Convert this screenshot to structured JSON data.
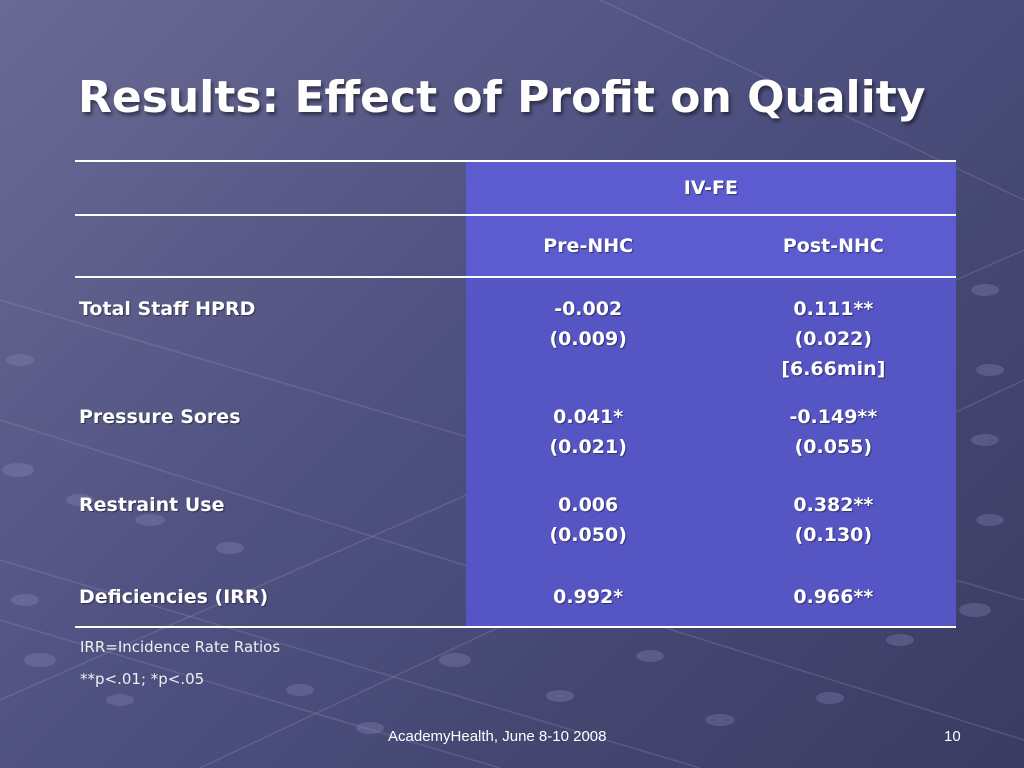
{
  "slide": {
    "title": "Results: Effect of Profit on Quality",
    "table": {
      "group_header": "IV-FE",
      "columns": [
        "Pre-NHC",
        "Post-NHC"
      ],
      "rows": [
        {
          "label": "Total Staff HPRD",
          "pre": [
            "-0.002",
            "(0.009)"
          ],
          "post": [
            "0.111**",
            "(0.022)",
            "[6.66min]"
          ]
        },
        {
          "label": "Pressure Sores",
          "pre": [
            "0.041*",
            "(0.021)"
          ],
          "post": [
            "-0.149**",
            "(0.055)"
          ]
        },
        {
          "label": "Restraint Use",
          "pre": [
            "0.006",
            "(0.050)"
          ],
          "post": [
            "0.382**",
            "(0.130)"
          ]
        },
        {
          "label": "Deficiencies (IRR)",
          "pre": [
            "0.992*"
          ],
          "post": [
            "0.966**"
          ]
        }
      ]
    },
    "footnotes": [
      "IRR=Incidence Rate Ratios",
      "**p<.01; *p<.05"
    ],
    "footer": {
      "center": "AcademyHealth, June 8-10 2008",
      "page_number": "10"
    }
  }
}
